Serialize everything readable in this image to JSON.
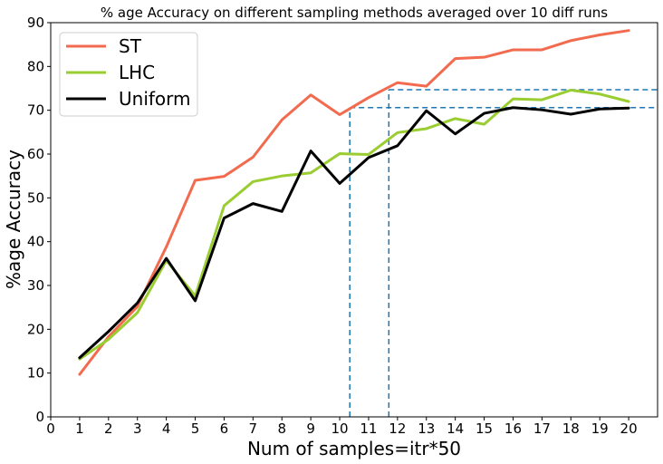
{
  "chart_data": {
    "type": "line",
    "title": "% age Accuracy on different sampling methods averaged over 10 diff runs",
    "xlabel": "Num of samples=itr*50",
    "ylabel": "%age Accuracy",
    "xlim": [
      0,
      21
    ],
    "ylim": [
      0,
      90
    ],
    "xticks": [
      0,
      1,
      2,
      3,
      4,
      5,
      6,
      7,
      8,
      9,
      10,
      11,
      12,
      13,
      14,
      15,
      16,
      17,
      18,
      19,
      20
    ],
    "yticks": [
      0,
      10,
      20,
      30,
      40,
      50,
      60,
      70,
      80,
      90
    ],
    "x": [
      1,
      2,
      3,
      4,
      5,
      6,
      7,
      8,
      9,
      10,
      11,
      12,
      13,
      14,
      15,
      16,
      17,
      18,
      19,
      20
    ],
    "series": [
      {
        "name": "ST",
        "color": "#f26b4f",
        "values": [
          9.7,
          18.3,
          25.2,
          38.8,
          54.0,
          54.9,
          59.3,
          67.8,
          73.5,
          69.0,
          72.9,
          76.3,
          75.5,
          81.8,
          82.1,
          83.8,
          83.8,
          85.9,
          87.2,
          88.2
        ]
      },
      {
        "name": "LHC",
        "color": "#9acd32",
        "values": [
          13.2,
          17.7,
          23.8,
          35.7,
          27.6,
          48.2,
          53.7,
          55.0,
          55.7,
          60.1,
          59.9,
          64.9,
          65.8,
          68.1,
          66.8,
          72.6,
          72.4,
          74.6,
          73.7,
          72.0
        ]
      },
      {
        "name": "Uniform",
        "color": "#000000",
        "values": [
          13.5,
          19.5,
          26.0,
          36.2,
          26.5,
          45.4,
          48.7,
          46.9,
          60.7,
          53.3,
          59.2,
          61.9,
          69.9,
          64.6,
          69.3,
          70.6,
          70.1,
          69.1,
          70.3,
          70.5
        ]
      }
    ],
    "reference_lines": [
      {
        "x": 10.35,
        "y": 70.6,
        "color": "#1f77b4"
      },
      {
        "x": 11.7,
        "y": 74.7,
        "color": "#1f77b4"
      }
    ],
    "legend_position": "top-left",
    "grid": false
  }
}
